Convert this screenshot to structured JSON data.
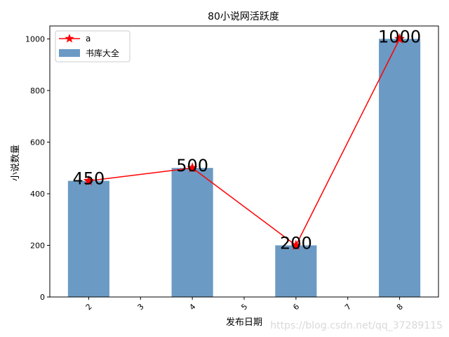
{
  "chart_data": {
    "type": "bar",
    "title": "80小说网活跃度",
    "xlabel": "发布日期",
    "ylabel": "小说数量",
    "xlim": [
      1.25,
      8.75
    ],
    "ylim": [
      0,
      1050
    ],
    "x_ticks": [
      "2",
      "3",
      "4",
      "5",
      "6",
      "7",
      "8"
    ],
    "y_ticks": [
      "0",
      "200",
      "400",
      "600",
      "800",
      "1000"
    ],
    "bars": {
      "name": "书库大全",
      "x": [
        2,
        4,
        6,
        8
      ],
      "values": [
        450,
        500,
        200,
        1000
      ],
      "color": "#6b9ac4",
      "data_labels": [
        "450",
        "500",
        "200",
        "1000"
      ]
    },
    "line": {
      "name": "a",
      "x": [
        2,
        4,
        6,
        8
      ],
      "values": [
        450,
        500,
        200,
        1000
      ],
      "color": "#ff0000",
      "marker": "star"
    },
    "legend_position": "top-left",
    "grid": false
  },
  "watermark": "https://blog.csdn.net/qq_37289115"
}
